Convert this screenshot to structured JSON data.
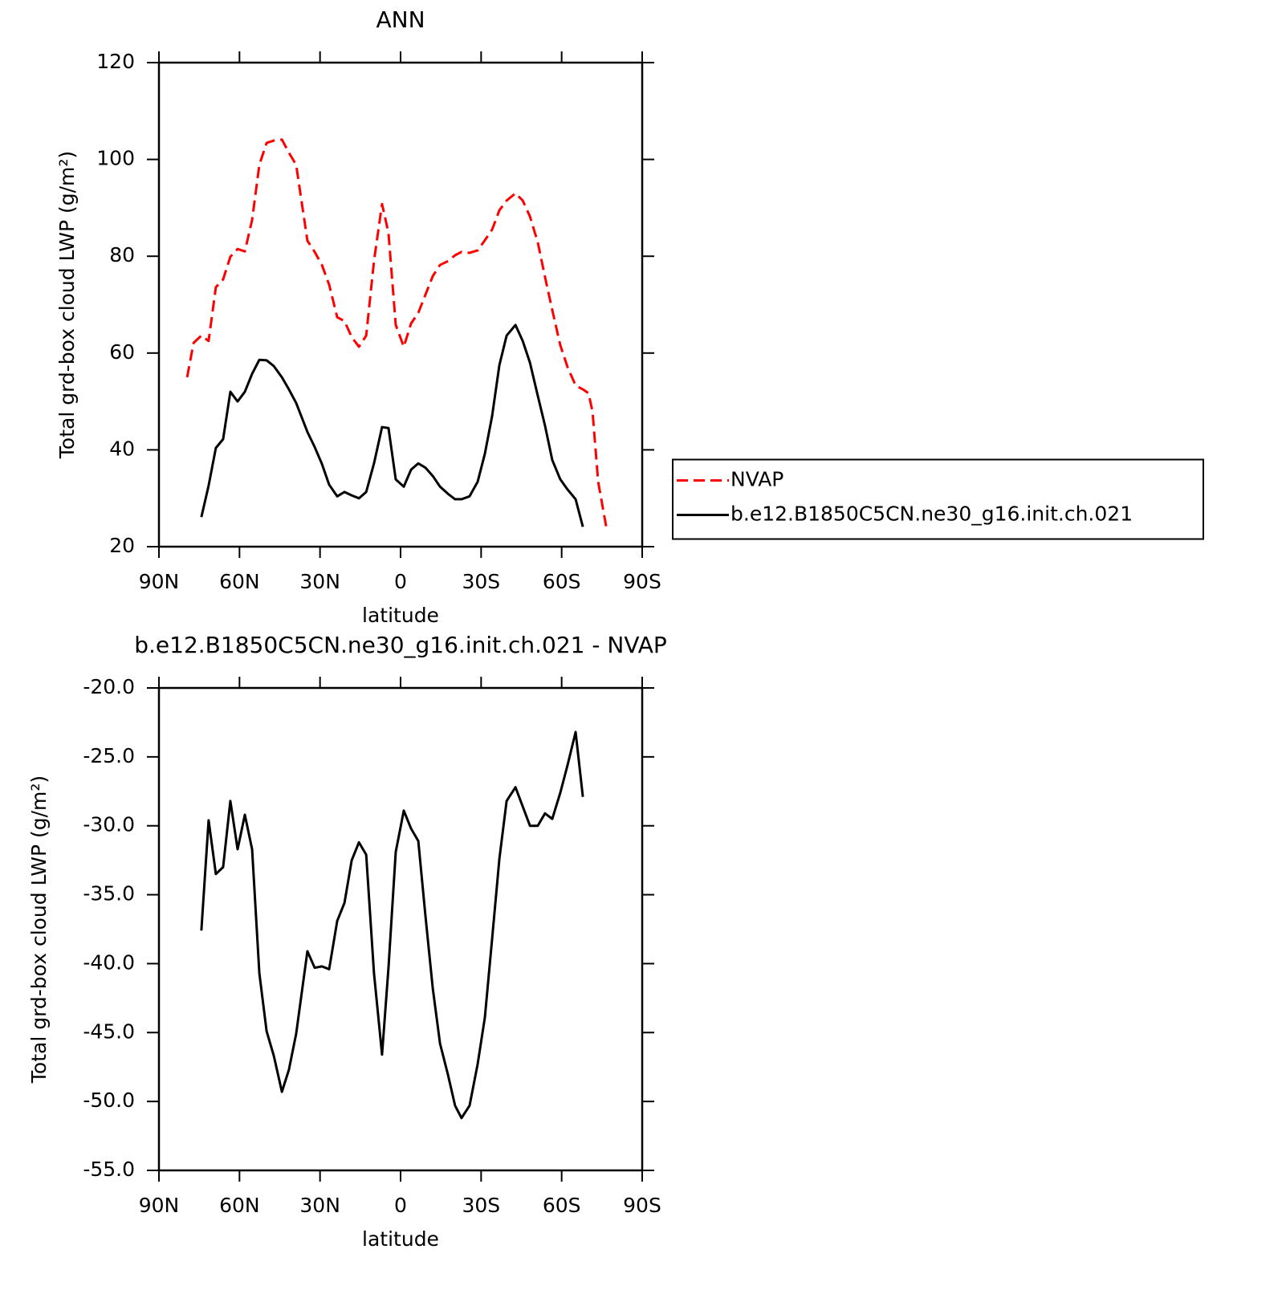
{
  "chart_data": [
    {
      "type": "line",
      "title": "ANN",
      "xlabel": "latitude",
      "ylabel": "Total grd-box cloud LWP (g/m²)",
      "xlim": [
        90,
        -90
      ],
      "xticks": [
        {
          "value": 90,
          "label": "90N"
        },
        {
          "value": 60,
          "label": "60N"
        },
        {
          "value": 30,
          "label": "30N"
        },
        0,
        {
          "value": -30,
          "label": "30S"
        },
        {
          "value": -60,
          "label": "60S"
        },
        {
          "value": -90,
          "label": "90S"
        }
      ],
      "ylim": [
        20,
        120
      ],
      "yticks": [
        20,
        40,
        60,
        80,
        100,
        120
      ],
      "legend": "right",
      "x": [
        79.5,
        77.1,
        74.2,
        71.5,
        68.8,
        66.1,
        63.4,
        60.7,
        58.0,
        55.3,
        52.6,
        49.9,
        47.2,
        44.2,
        41.6,
        38.9,
        34.7,
        32.0,
        29.3,
        26.6,
        23.6,
        20.9,
        18.2,
        15.5,
        12.8,
        9.9,
        6.9,
        4.5,
        1.8,
        -1.2,
        -3.9,
        -6.6,
        -9.3,
        -12.0,
        -14.7,
        -17.7,
        -20.3,
        -22.7,
        -25.7,
        -28.7,
        -31.4,
        -34.1,
        -36.8,
        -39.5,
        -42.8,
        -45.5,
        -48.2,
        -51.1,
        -53.8,
        -56.5,
        -59.5,
        -62.2,
        -65.2,
        -67.9,
        -70.0,
        -71.5,
        -73.6,
        -76.6
      ],
      "series": [
        {
          "name": "NVAP",
          "color": "#ff0000",
          "linestyle": "dashed",
          "values": [
            55.0,
            62.1,
            63.6,
            62.5,
            73.6,
            75.2,
            79.9,
            81.5,
            81.0,
            87.5,
            98.9,
            103.4,
            103.9,
            104.1,
            101.4,
            98.9,
            83.2,
            80.9,
            78.2,
            74.1,
            67.4,
            66.6,
            63.3,
            61.3,
            63.6,
            79.0,
            90.8,
            84.8,
            65.8,
            61.3,
            66.1,
            68.3,
            72.1,
            75.9,
            78.2,
            79.0,
            80.2,
            80.9,
            80.7,
            81.2,
            83.3,
            85.5,
            89.5,
            91.5,
            93.0,
            91.5,
            88.2,
            82.9,
            75.7,
            68.9,
            61.6,
            57.1,
            53.3,
            52.5,
            51.7,
            47.9,
            33.4,
            24.1
          ]
        },
        {
          "name": "b.e12.B1850C5CN.ne30_g16.init.ch.021",
          "color": "#000000",
          "linestyle": "solid",
          "values": [
            null,
            null,
            26.1,
            32.6,
            40.4,
            42.2,
            52.0,
            50.0,
            52.0,
            55.7,
            58.6,
            58.5,
            57.3,
            55.0,
            52.5,
            49.7,
            43.7,
            40.6,
            37.1,
            32.8,
            30.4,
            31.3,
            30.6,
            30.0,
            31.3,
            37.2,
            44.7,
            44.5,
            33.9,
            32.4,
            35.9,
            37.2,
            36.3,
            34.6,
            32.4,
            30.9,
            29.8,
            29.8,
            30.4,
            33.4,
            39.2,
            47.0,
            57.5,
            63.6,
            65.8,
            62.5,
            58.0,
            51.2,
            45.0,
            37.9,
            33.9,
            31.8,
            29.8,
            24.1,
            null,
            null,
            null,
            null
          ]
        }
      ]
    },
    {
      "type": "line",
      "title": "b.e12.B1850C5CN.ne30_g16.init.ch.021 - NVAP",
      "xlabel": "latitude",
      "ylabel": "Total grd-box cloud LWP (g/m²)",
      "xlim": [
        90,
        -90
      ],
      "xticks": [
        {
          "value": 90,
          "label": "90N"
        },
        {
          "value": 60,
          "label": "60N"
        },
        {
          "value": 30,
          "label": "30N"
        },
        0,
        {
          "value": -30,
          "label": "30S"
        },
        {
          "value": -60,
          "label": "60S"
        },
        {
          "value": -90,
          "label": "90S"
        }
      ],
      "ylim": [
        -55,
        -20
      ],
      "yticks": [
        {
          "value": -55,
          "label": "-55.0"
        },
        {
          "value": -50,
          "label": "-50.0"
        },
        {
          "value": -45,
          "label": "-45.0"
        },
        {
          "value": -40,
          "label": "-40.0"
        },
        {
          "value": -35,
          "label": "-35.0"
        },
        {
          "value": -30,
          "label": "-30.0"
        },
        {
          "value": -25,
          "label": "-25.0"
        },
        {
          "value": -20,
          "label": "-20.0"
        }
      ],
      "x": [
        74.2,
        71.5,
        68.8,
        66.1,
        63.4,
        60.7,
        58.0,
        55.3,
        52.6,
        49.9,
        47.2,
        44.2,
        41.6,
        38.9,
        34.7,
        32.0,
        29.3,
        26.6,
        23.6,
        20.9,
        18.2,
        15.5,
        12.8,
        9.9,
        6.9,
        4.5,
        1.8,
        -1.2,
        -3.9,
        -6.6,
        -9.3,
        -12.0,
        -14.7,
        -17.7,
        -20.3,
        -22.7,
        -25.7,
        -28.7,
        -31.4,
        -34.1,
        -36.8,
        -39.5,
        -42.8,
        -45.5,
        -48.2,
        -51.1,
        -53.8,
        -56.5,
        -59.5,
        -62.2,
        -65.2,
        -67.9
      ],
      "series": [
        {
          "color": "#000000",
          "linestyle": "solid",
          "values": [
            -37.6,
            -29.6,
            -33.5,
            -33.0,
            -28.2,
            -31.7,
            -29.2,
            -31.7,
            -40.7,
            -44.9,
            -46.7,
            -49.3,
            -47.7,
            -45.1,
            -39.1,
            -40.3,
            -40.2,
            -40.4,
            -36.9,
            -35.6,
            -32.5,
            -31.2,
            -32.1,
            -40.7,
            -46.6,
            -40.3,
            -31.9,
            -28.9,
            -30.2,
            -31.1,
            -36.6,
            -41.8,
            -45.8,
            -48.1,
            -50.3,
            -51.2,
            -50.3,
            -47.3,
            -43.9,
            -38.2,
            -32.4,
            -28.2,
            -27.2,
            -28.6,
            -30.0,
            -30.0,
            -29.1,
            -29.5,
            -27.6,
            -25.6,
            -23.2,
            -27.9
          ]
        }
      ]
    }
  ]
}
